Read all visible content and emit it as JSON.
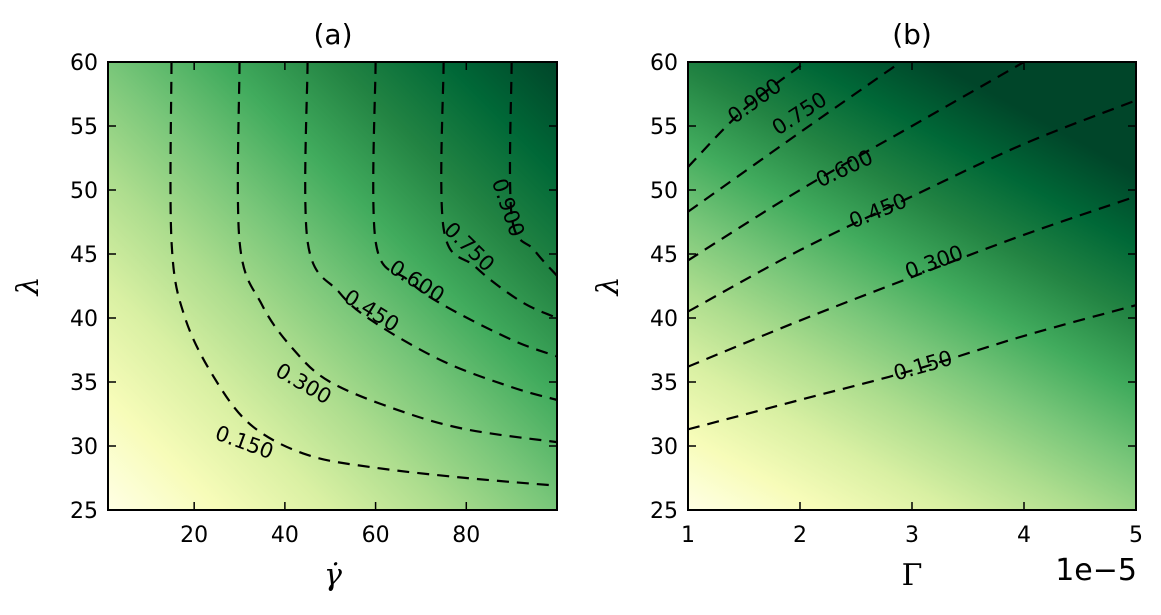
{
  "chart_data": [
    {
      "type": "heatmap",
      "title": "(a)",
      "xlabel": "γ̇",
      "ylabel": "λ",
      "xlim": [
        1,
        100
      ],
      "ylim": [
        25,
        60
      ],
      "xticks": [
        "20",
        "40",
        "60",
        "80"
      ],
      "yticks": [
        "25",
        "30",
        "35",
        "40",
        "45",
        "50",
        "55",
        "60"
      ],
      "colormap": [
        "#ffffe5",
        "#f7fcb9",
        "#d9f0a3",
        "#addd8e",
        "#78c679",
        "#41ab5d",
        "#238443",
        "#006837",
        "#004529"
      ],
      "contour_levels": [
        "0.150",
        "0.300",
        "0.450",
        "0.600",
        "0.750",
        "0.900"
      ],
      "contours": [
        {
          "level": "0.150",
          "points": [
            [
              15,
              60
            ],
            [
              15,
              46
            ],
            [
              18,
              40
            ],
            [
              25,
              35
            ],
            [
              33,
              31.5
            ],
            [
              45,
              29.3
            ],
            [
              60,
              28.3
            ],
            [
              80,
              27.5
            ],
            [
              100,
              26.9
            ]
          ]
        },
        {
          "level": "0.300",
          "points": [
            [
              30,
              60
            ],
            [
              30,
              46
            ],
            [
              35,
              41
            ],
            [
              42,
              37.5
            ],
            [
              50,
              35
            ],
            [
              65,
              32.8
            ],
            [
              80,
              31.3
            ],
            [
              100,
              30.3
            ]
          ]
        },
        {
          "level": "0.450",
          "points": [
            [
              45,
              60
            ],
            [
              45,
              46
            ],
            [
              52,
              42
            ],
            [
              60,
              39.6
            ],
            [
              75,
              36.6
            ],
            [
              90,
              34.6
            ],
            [
              100,
              33.6
            ]
          ]
        },
        {
          "level": "0.600",
          "points": [
            [
              60,
              60
            ],
            [
              60,
              46
            ],
            [
              67,
              43
            ],
            [
              75,
              41
            ],
            [
              90,
              38.3
            ],
            [
              100,
              37
            ]
          ]
        },
        {
          "level": "0.750",
          "points": [
            [
              75,
              60
            ],
            [
              75,
              47
            ],
            [
              82,
              44
            ],
            [
              92,
              41.3
            ],
            [
              100,
              40
            ]
          ]
        },
        {
          "level": "0.900",
          "points": [
            [
              90,
              60
            ],
            [
              90,
              48
            ],
            [
              95,
              45.3
            ],
            [
              100,
              43.3
            ]
          ]
        }
      ]
    },
    {
      "type": "heatmap",
      "title": "(b)",
      "xlabel": "Γ",
      "ylabel": "λ",
      "xlim": [
        1,
        5
      ],
      "ylim": [
        25,
        60
      ],
      "x_offset_label": "1e−5",
      "xticks": [
        "1",
        "2",
        "3",
        "4",
        "5"
      ],
      "yticks": [
        "25",
        "30",
        "35",
        "40",
        "45",
        "50",
        "55",
        "60"
      ],
      "colormap": [
        "#ffffe5",
        "#f7fcb9",
        "#d9f0a3",
        "#addd8e",
        "#78c679",
        "#41ab5d",
        "#238443",
        "#006837",
        "#004529"
      ],
      "contour_levels": [
        "0.150",
        "0.300",
        "0.450",
        "0.600",
        "0.750",
        "0.900"
      ],
      "contours": [
        {
          "level": "0.150",
          "points": [
            [
              1,
              31.3
            ],
            [
              2,
              33.6
            ],
            [
              3,
              35.9
            ],
            [
              4,
              38.6
            ],
            [
              5,
              41
            ]
          ]
        },
        {
          "level": "0.300",
          "points": [
            [
              1,
              36.2
            ],
            [
              2,
              39.8
            ],
            [
              3,
              43.2
            ],
            [
              4,
              46.5
            ],
            [
              5,
              49.5
            ]
          ]
        },
        {
          "level": "0.450",
          "points": [
            [
              1,
              40.5
            ],
            [
              2,
              45.3
            ],
            [
              3,
              49.5
            ],
            [
              4,
              53.6
            ],
            [
              5,
              57
            ]
          ]
        },
        {
          "level": "0.600",
          "points": [
            [
              1,
              44.5
            ],
            [
              2,
              50
            ],
            [
              3,
              55
            ],
            [
              4,
              60
            ]
          ]
        },
        {
          "level": "0.750",
          "points": [
            [
              1,
              48.3
            ],
            [
              2,
              54.5
            ],
            [
              2.9,
              60
            ]
          ]
        },
        {
          "level": "0.900",
          "points": [
            [
              1,
              51.8
            ],
            [
              1.5,
              56.3
            ],
            [
              2.05,
              60
            ]
          ]
        }
      ]
    }
  ]
}
